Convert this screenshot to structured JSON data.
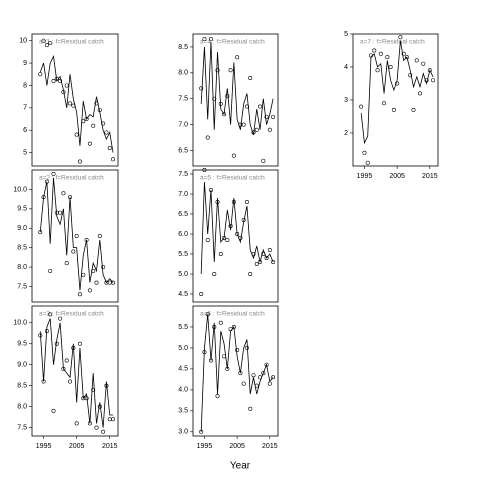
{
  "xlabel": "Year",
  "chart_data": [
    {
      "type": "line",
      "title": "a=1 : f=Residual catch",
      "x": [
        1994,
        1995,
        1996,
        1997,
        1998,
        1999,
        2000,
        2001,
        2002,
        2003,
        2004,
        2005,
        2006,
        2007,
        2008,
        2009,
        2010,
        2011,
        2012,
        2013,
        2014,
        2015,
        2016
      ],
      "series": [
        {
          "style": "line",
          "color": "#000000",
          "values": [
            8.6,
            9.0,
            8.0,
            9.0,
            9.3,
            8.2,
            8.4,
            7.8,
            7.0,
            8.5,
            7.4,
            6.8,
            5.3,
            7.3,
            6.5,
            6.7,
            6.6,
            7.5,
            6.8,
            6.0,
            5.6,
            5.9,
            5.0
          ]
        },
        {
          "style": "points",
          "color": "#000000",
          "values": [
            8.5,
            10.0,
            9.8,
            9.9,
            8.2,
            8.3,
            8.2,
            7.7,
            8.0,
            7.2,
            7.1,
            5.8,
            4.6,
            6.4,
            6.5,
            5.4,
            6.2,
            7.2,
            6.9,
            6.3,
            5.9,
            5.2,
            4.7
          ]
        }
      ],
      "xlim": [
        1991.5,
        2017.5
      ],
      "ylim": [
        4.4,
        10.3
      ],
      "yticks": [
        5,
        6,
        7,
        8,
        9,
        10
      ]
    },
    {
      "type": "line",
      "title": "a=2 : f=Residual catch",
      "x": [
        1994,
        1995,
        1996,
        1997,
        1998,
        1999,
        2000,
        2001,
        2002,
        2003,
        2004,
        2005,
        2006,
        2007,
        2008,
        2009,
        2010,
        2011,
        2012,
        2013,
        2014,
        2015,
        2016
      ],
      "series": [
        {
          "style": "line",
          "color": "#000000",
          "values": [
            8.9,
            9.8,
            10.2,
            8.6,
            10.3,
            9.3,
            9.1,
            9.5,
            8.3,
            9.8,
            8.5,
            8.5,
            7.4,
            8.3,
            8.7,
            7.6,
            8.1,
            7.9,
            8.7,
            7.8,
            7.6,
            7.7,
            7.6
          ]
        },
        {
          "style": "points",
          "color": "#000000",
          "values": [
            8.9,
            9.8,
            10.2,
            7.9,
            10.4,
            9.4,
            9.4,
            9.9,
            8.1,
            9.8,
            8.4,
            8.8,
            7.3,
            7.8,
            8.7,
            7.4,
            7.9,
            7.6,
            8.8,
            8.0,
            7.6,
            7.6,
            7.6
          ]
        }
      ],
      "xlim": [
        1991.5,
        2017.5
      ],
      "ylim": [
        7.1,
        10.5
      ],
      "yticks": [
        {
          "value": 7.5,
          "label": "7.5"
        },
        {
          "value": 8,
          "label": "8.0"
        },
        {
          "value": 8.5,
          "label": "8.5"
        },
        {
          "value": 9,
          "label": "9.0"
        },
        {
          "value": 9.5,
          "label": "9.5"
        },
        {
          "value": 10,
          "label": "10.0"
        }
      ]
    },
    {
      "type": "line",
      "title": "a=3 : f=Residual catch",
      "x": [
        1994,
        1995,
        1996,
        1997,
        1998,
        1999,
        2000,
        2001,
        2002,
        2003,
        2004,
        2005,
        2006,
        2007,
        2008,
        2009,
        2010,
        2011,
        2012,
        2013,
        2014,
        2015,
        2016
      ],
      "series": [
        {
          "style": "line",
          "color": "#000000",
          "values": [
            9.8,
            8.6,
            9.9,
            10.1,
            9.0,
            9.6,
            10.0,
            8.9,
            8.8,
            8.7,
            9.5,
            8.1,
            9.4,
            8.2,
            8.3,
            7.6,
            8.8,
            7.6,
            8.1,
            7.5,
            8.6,
            7.8,
            7.8
          ]
        },
        {
          "style": "points",
          "color": "#000000",
          "values": [
            9.7,
            8.6,
            9.8,
            10.2,
            7.9,
            9.5,
            10.1,
            8.9,
            9.1,
            8.6,
            9.4,
            7.6,
            9.5,
            8.2,
            8.2,
            7.6,
            8.4,
            7.5,
            8.0,
            7.4,
            8.5,
            7.7,
            7.7
          ]
        }
      ],
      "xlim": [
        1991.5,
        2017.5
      ],
      "ylim": [
        7.3,
        10.4
      ],
      "yticks": [
        {
          "value": 7.5,
          "label": "7.5"
        },
        {
          "value": 8,
          "label": "8.0"
        },
        {
          "value": 8.5,
          "label": "8.5"
        },
        {
          "value": 9,
          "label": "9.0"
        },
        {
          "value": 9.5,
          "label": "9.5"
        },
        {
          "value": 10,
          "label": "10.0"
        }
      ],
      "xticks": [
        1995,
        2005,
        2015
      ]
    },
    {
      "type": "line",
      "title": "a=4 : f=Residual catch",
      "x": [
        1994,
        1995,
        1996,
        1997,
        1998,
        1999,
        2000,
        2001,
        2002,
        2003,
        2004,
        2005,
        2006,
        2007,
        2008,
        2009,
        2010,
        2011,
        2012,
        2013,
        2014,
        2015,
        2016
      ],
      "series": [
        {
          "style": "line",
          "color": "#000000",
          "values": [
            7.4,
            8.5,
            7.1,
            8.6,
            6.9,
            8.4,
            7.3,
            7.2,
            7.7,
            7.0,
            8.2,
            7.1,
            6.9,
            7.4,
            7.6,
            7.0,
            6.8,
            7.3,
            6.9,
            7.5,
            7.0,
            7.2,
            7.5
          ]
        },
        {
          "style": "points",
          "color": "#000000",
          "values": [
            7.7,
            8.65,
            6.75,
            8.65,
            7.5,
            8.05,
            7.4,
            7.2,
            7.55,
            8.05,
            6.4,
            8.3,
            7.0,
            7.0,
            7.35,
            7.9,
            6.85,
            6.9,
            7.35,
            6.3,
            7.15,
            6.9,
            7.15
          ]
        }
      ],
      "xlim": [
        1991.5,
        2017.5
      ],
      "ylim": [
        6.2,
        8.75
      ],
      "yticks": [
        {
          "value": 6.5,
          "label": "6.5"
        },
        {
          "value": 7,
          "label": "7.0"
        },
        {
          "value": 7.5,
          "label": "7.5"
        },
        {
          "value": 8,
          "label": "8.0"
        },
        {
          "value": 8.5,
          "label": "8.5"
        }
      ]
    },
    {
      "type": "line",
      "title": "a=5 : f=Residual catch",
      "x": [
        1994,
        1995,
        1996,
        1997,
        1998,
        1999,
        2000,
        2001,
        2002,
        2003,
        2004,
        2005,
        2006,
        2007,
        2008,
        2009,
        2010,
        2011,
        2012,
        2013,
        2014,
        2015,
        2016
      ],
      "series": [
        {
          "style": "line",
          "color": "#000000",
          "values": [
            5.0,
            7.3,
            6.0,
            7.1,
            5.3,
            6.9,
            5.8,
            5.9,
            6.6,
            6.1,
            6.9,
            6.0,
            5.8,
            6.3,
            6.7,
            5.6,
            5.4,
            5.7,
            5.3,
            5.6,
            5.4,
            5.5,
            5.3
          ]
        },
        {
          "style": "points",
          "color": "#000000",
          "values": [
            4.5,
            7.6,
            5.85,
            7.1,
            5.0,
            6.8,
            5.5,
            5.9,
            5.85,
            6.2,
            6.8,
            6.0,
            5.9,
            6.35,
            6.8,
            5.0,
            5.5,
            5.25,
            5.3,
            5.5,
            5.4,
            5.6,
            5.3
          ]
        }
      ],
      "xlim": [
        1991.5,
        2017.5
      ],
      "ylim": [
        4.3,
        7.6
      ],
      "yticks": [
        {
          "value": 4.5,
          "label": "4.5"
        },
        {
          "value": 5,
          "label": "5.0"
        },
        {
          "value": 5.5,
          "label": "5.5"
        },
        {
          "value": 6,
          "label": "6.0"
        },
        {
          "value": 6.5,
          "label": "6.5"
        },
        {
          "value": 7,
          "label": "7.0"
        },
        {
          "value": 7.5,
          "label": "7.5"
        }
      ]
    },
    {
      "type": "line",
      "title": "a=6 : f=Residual catch",
      "x": [
        1994,
        1995,
        1996,
        1997,
        1998,
        1999,
        2000,
        2001,
        2002,
        2003,
        2004,
        2005,
        2006,
        2007,
        2008,
        2009,
        2010,
        2011,
        2012,
        2013,
        2014,
        2015,
        2016
      ],
      "series": [
        {
          "style": "line",
          "color": "#000000",
          "values": [
            3.0,
            5.0,
            5.8,
            4.7,
            5.6,
            3.9,
            5.4,
            5.1,
            4.5,
            5.4,
            5.5,
            4.8,
            4.4,
            5.0,
            5.2,
            3.9,
            4.3,
            3.9,
            4.2,
            4.4,
            4.6,
            4.2,
            4.3
          ]
        },
        {
          "style": "points",
          "color": "#000000",
          "values": [
            3.0,
            4.9,
            5.8,
            4.7,
            5.5,
            3.85,
            5.6,
            4.8,
            4.5,
            5.45,
            5.5,
            4.95,
            4.4,
            4.15,
            5.0,
            3.55,
            4.35,
            4.1,
            4.3,
            4.4,
            4.6,
            4.15,
            4.3
          ]
        }
      ],
      "xlim": [
        1991.5,
        2017.5
      ],
      "ylim": [
        2.9,
        6.0
      ],
      "yticks": [
        {
          "value": 3,
          "label": "3.0"
        },
        {
          "value": 3.5,
          "label": "3.5"
        },
        {
          "value": 4,
          "label": "4.0"
        },
        {
          "value": 4.5,
          "label": "4.5"
        },
        {
          "value": 5,
          "label": "5.0"
        },
        {
          "value": 5.5,
          "label": "5.5"
        }
      ],
      "xticks": [
        1995,
        2005,
        2015
      ]
    },
    {
      "type": "line",
      "title": "a=7 : f=Residual catch",
      "x": [
        1994,
        1995,
        1996,
        1997,
        1998,
        1999,
        2000,
        2001,
        2002,
        2003,
        2004,
        2005,
        2006,
        2007,
        2008,
        2009,
        2010,
        2011,
        2012,
        2013,
        2014,
        2015,
        2016
      ],
      "series": [
        {
          "style": "line",
          "color": "#000000",
          "values": [
            2.6,
            1.7,
            1.9,
            4.3,
            4.4,
            4.0,
            4.1,
            3.2,
            4.2,
            3.6,
            3.3,
            3.6,
            4.8,
            4.2,
            4.3,
            3.9,
            3.4,
            3.7,
            3.4,
            3.8,
            3.5,
            3.9,
            3.7
          ]
        },
        {
          "style": "points",
          "color": "#000000",
          "values": [
            2.8,
            1.4,
            1.1,
            4.35,
            4.5,
            3.9,
            4.4,
            2.9,
            4.3,
            4.0,
            2.7,
            3.5,
            4.9,
            4.4,
            4.3,
            3.75,
            2.7,
            4.2,
            3.2,
            4.1,
            3.6,
            3.9,
            3.6
          ]
        }
      ],
      "xlim": [
        1991.5,
        2017.5
      ],
      "ylim": [
        1.0,
        5.0
      ],
      "yticks": [
        2,
        3,
        4,
        5
      ],
      "xticks": [
        1995,
        2005,
        2015
      ]
    }
  ]
}
